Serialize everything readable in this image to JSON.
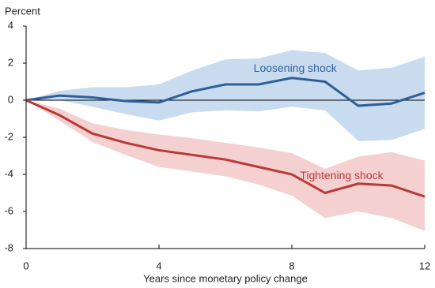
{
  "chart_data": {
    "type": "line",
    "y_label": "Percent",
    "x_label": "Years since monetary policy change",
    "x": [
      0,
      1,
      2,
      3,
      4,
      5,
      6,
      7,
      8,
      9,
      10,
      11,
      12
    ],
    "series": [
      {
        "name": "Loosening shock",
        "color": "#2f5f98",
        "band_color": "#c9dcef",
        "values": [
          0,
          0.25,
          0.15,
          -0.05,
          -0.12,
          0.48,
          0.85,
          0.85,
          1.2,
          1.0,
          -0.3,
          -0.18,
          0.4
        ],
        "upper": [
          0,
          0.5,
          0.7,
          0.7,
          0.85,
          1.6,
          2.2,
          2.25,
          2.7,
          2.55,
          1.6,
          1.75,
          2.35
        ],
        "lower": [
          0,
          0,
          -0.35,
          -0.75,
          -1.1,
          -0.65,
          -0.55,
          -0.6,
          -0.35,
          -0.55,
          -2.2,
          -2.15,
          -1.55
        ]
      },
      {
        "name": "Tightening shock",
        "color": "#b73a36",
        "band_color": "#f4d0d0",
        "values": [
          0,
          -0.8,
          -1.8,
          -2.3,
          -2.7,
          -2.95,
          -3.2,
          -3.6,
          -4.0,
          -5.0,
          -4.5,
          -4.6,
          -5.2
        ],
        "upper": [
          0,
          -0.45,
          -1.25,
          -1.6,
          -1.85,
          -2.05,
          -2.3,
          -2.55,
          -2.85,
          -3.7,
          -3.05,
          -2.8,
          -3.25
        ],
        "lower": [
          0,
          -1.1,
          -2.25,
          -2.95,
          -3.6,
          -3.85,
          -4.1,
          -4.55,
          -5.15,
          -6.35,
          -6.0,
          -6.35,
          -7.05
        ]
      }
    ],
    "xlim": [
      0,
      12
    ],
    "xticks": [
      0,
      4,
      8,
      12
    ],
    "ylim": [
      -8,
      4
    ],
    "yticks": [
      -8,
      -6,
      -4,
      -2,
      0,
      2,
      4
    ],
    "grid": false
  }
}
